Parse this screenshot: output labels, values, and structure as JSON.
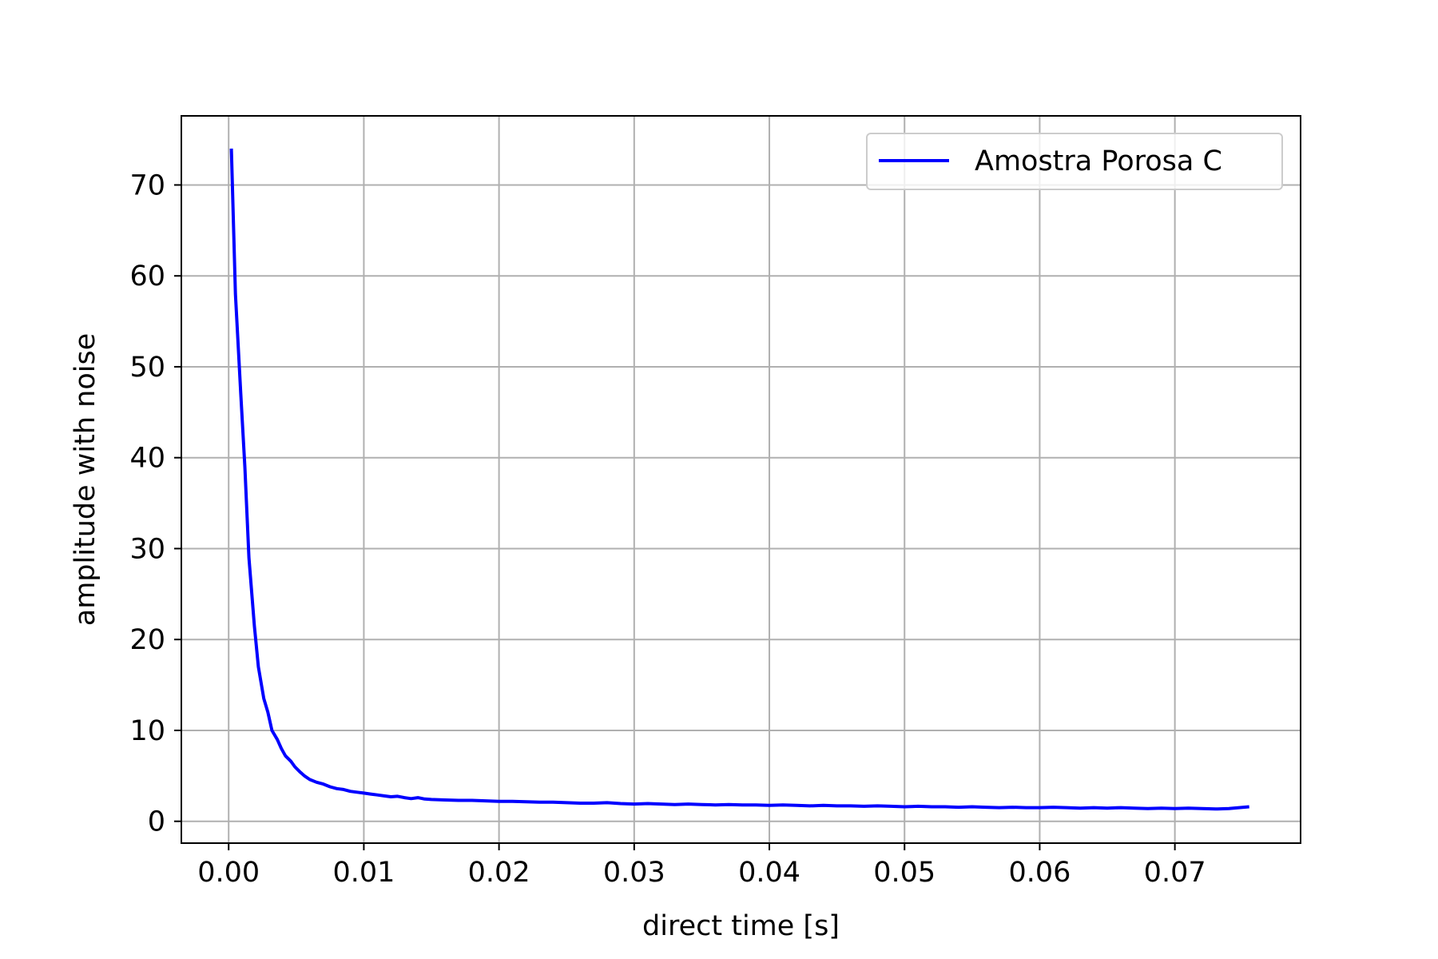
{
  "chart_data": {
    "type": "line",
    "title": "",
    "xlabel": "direct time [s]",
    "ylabel": "amplitude with noise",
    "xlim": [
      -0.0035,
      0.0793
    ],
    "ylim": [
      -2.4,
      77.6
    ],
    "xticks": [
      0.0,
      0.01,
      0.02,
      0.03,
      0.04,
      0.05,
      0.06,
      0.07
    ],
    "xtick_labels": [
      "0.00",
      "0.01",
      "0.02",
      "0.03",
      "0.04",
      "0.05",
      "0.06",
      "0.07"
    ],
    "yticks": [
      0,
      10,
      20,
      30,
      40,
      50,
      60,
      70
    ],
    "ytick_labels": [
      "0",
      "10",
      "20",
      "30",
      "40",
      "50",
      "60",
      "70"
    ],
    "grid": true,
    "legend_position": "top-right",
    "series": [
      {
        "name": "Amostra Porosa C",
        "color": "#0000ff",
        "x": [
          0.0002,
          0.0005,
          0.0009,
          0.0012,
          0.0015,
          0.0019,
          0.0022,
          0.0026,
          0.0029,
          0.0032,
          0.0036,
          0.0039,
          0.0042,
          0.0046,
          0.0049,
          0.0053,
          0.0056,
          0.006,
          0.0065,
          0.007,
          0.0075,
          0.008,
          0.0085,
          0.009,
          0.0095,
          0.01,
          0.0105,
          0.011,
          0.0115,
          0.012,
          0.0125,
          0.013,
          0.0135,
          0.014,
          0.0145,
          0.015,
          0.016,
          0.017,
          0.018,
          0.019,
          0.02,
          0.021,
          0.022,
          0.023,
          0.024,
          0.025,
          0.026,
          0.027,
          0.028,
          0.029,
          0.03,
          0.031,
          0.032,
          0.033,
          0.034,
          0.035,
          0.036,
          0.037,
          0.038,
          0.039,
          0.04,
          0.041,
          0.042,
          0.043,
          0.044,
          0.045,
          0.046,
          0.047,
          0.048,
          0.049,
          0.05,
          0.051,
          0.052,
          0.053,
          0.054,
          0.055,
          0.056,
          0.057,
          0.058,
          0.059,
          0.06,
          0.061,
          0.062,
          0.063,
          0.064,
          0.065,
          0.066,
          0.067,
          0.068,
          0.069,
          0.07,
          0.071,
          0.072,
          0.073,
          0.074,
          0.0755
        ],
        "y": [
          74.0,
          58.0,
          47.0,
          39.0,
          29.0,
          21.5,
          17.0,
          13.5,
          12.0,
          10.0,
          9.0,
          8.0,
          7.2,
          6.6,
          6.0,
          5.4,
          5.0,
          4.6,
          4.3,
          4.1,
          3.8,
          3.6,
          3.5,
          3.3,
          3.2,
          3.1,
          3.0,
          2.9,
          2.8,
          2.7,
          2.75,
          2.6,
          2.5,
          2.6,
          2.45,
          2.4,
          2.35,
          2.3,
          2.3,
          2.25,
          2.2,
          2.2,
          2.15,
          2.1,
          2.1,
          2.05,
          2.0,
          2.0,
          2.05,
          1.95,
          1.9,
          1.95,
          1.9,
          1.85,
          1.9,
          1.85,
          1.8,
          1.85,
          1.8,
          1.8,
          1.75,
          1.8,
          1.75,
          1.7,
          1.75,
          1.7,
          1.7,
          1.65,
          1.7,
          1.65,
          1.6,
          1.65,
          1.6,
          1.6,
          1.55,
          1.6,
          1.55,
          1.5,
          1.55,
          1.5,
          1.5,
          1.55,
          1.5,
          1.45,
          1.5,
          1.45,
          1.5,
          1.45,
          1.4,
          1.45,
          1.4,
          1.45,
          1.4,
          1.35,
          1.4,
          1.6
        ]
      }
    ]
  }
}
